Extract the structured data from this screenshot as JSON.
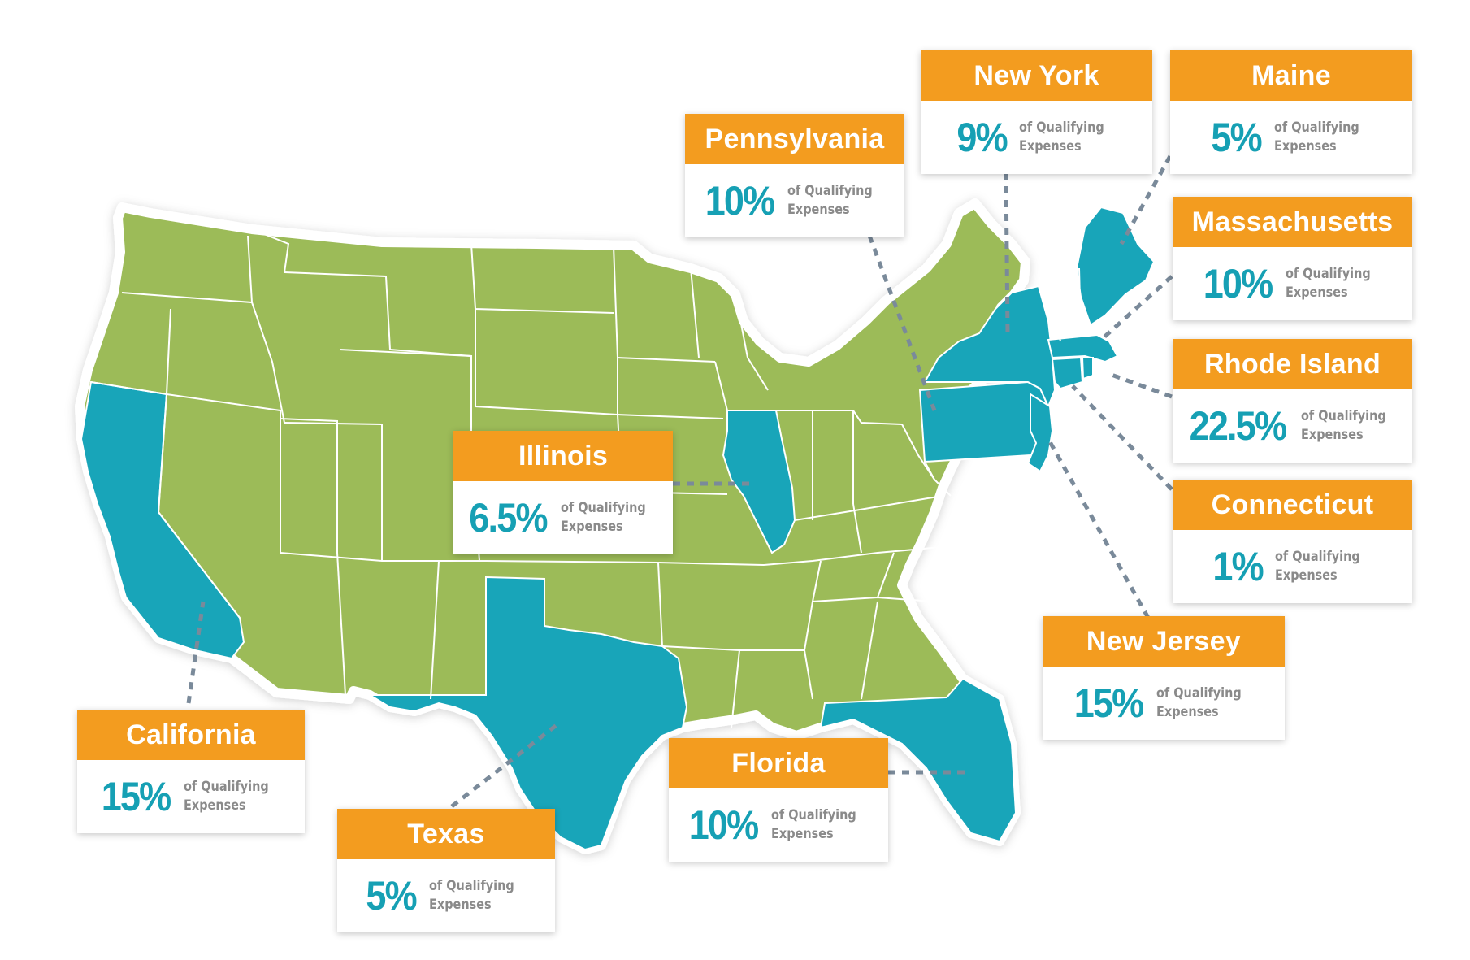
{
  "map": {
    "colors": {
      "highlighted_state": "#18a5b9",
      "other_states": "#9cbb58",
      "card_header": "#f39c1f",
      "percent_text": "#16a0b4",
      "label_text": "#8a8a8a",
      "leader_line": "#7a8a9a"
    },
    "highlighted_states": [
      "California",
      "Texas",
      "Illinois",
      "Florida",
      "Pennsylvania",
      "New York",
      "New Jersey",
      "Maine",
      "Massachusetts",
      "Rhode Island",
      "Connecticut"
    ],
    "cards": [
      {
        "id": "california",
        "state": "California",
        "percent": "15%",
        "label_line1": "of Qualifying",
        "label_line2": "Expenses"
      },
      {
        "id": "texas",
        "state": "Texas",
        "percent": "5%",
        "label_line1": "of Qualifying",
        "label_line2": "Expenses"
      },
      {
        "id": "illinois",
        "state": "Illinois",
        "percent": "6.5%",
        "label_line1": "of Qualifying",
        "label_line2": "Expenses"
      },
      {
        "id": "florida",
        "state": "Florida",
        "percent": "10%",
        "label_line1": "of Qualifying",
        "label_line2": "Expenses"
      },
      {
        "id": "pennsylvania",
        "state": "Pennsylvania",
        "percent": "10%",
        "label_line1": "of Qualifying",
        "label_line2": "Expenses"
      },
      {
        "id": "new-york",
        "state": "New York",
        "percent": "9%",
        "label_line1": "of Qualifying",
        "label_line2": "Expenses"
      },
      {
        "id": "maine",
        "state": "Maine",
        "percent": "5%",
        "label_line1": "of Qualifying",
        "label_line2": "Expenses"
      },
      {
        "id": "massachusetts",
        "state": "Massachusetts",
        "percent": "10%",
        "label_line1": "of Qualifying",
        "label_line2": "Expenses"
      },
      {
        "id": "rhode-island",
        "state": "Rhode Island",
        "percent": "22.5%",
        "label_line1": "of Qualifying",
        "label_line2": "Expenses"
      },
      {
        "id": "connecticut",
        "state": "Connecticut",
        "percent": "1%",
        "label_line1": "of Qualifying",
        "label_line2": "Expenses"
      },
      {
        "id": "new-jersey",
        "state": "New Jersey",
        "percent": "15%",
        "label_line1": "of Qualifying",
        "label_line2": "Expenses"
      }
    ]
  }
}
